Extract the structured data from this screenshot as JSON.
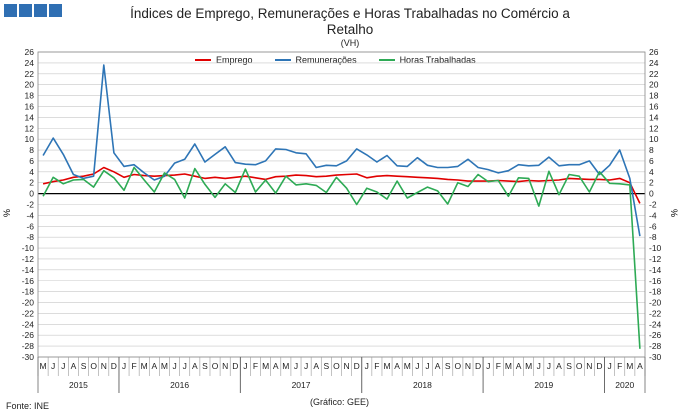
{
  "header": {
    "title_line1": "Índices de Emprego, Remunerações e Horas Trabalhadas no Comércio a",
    "title_line2": "Retalho",
    "subtitle": "(VH)"
  },
  "footer": {
    "source": "Fonte: INE",
    "credit": "(Gráfico: GEE)"
  },
  "colors": {
    "emprego": "#e00000",
    "remuneracoes": "#2e75b6",
    "horas": "#2eaa55",
    "logo": "#2f6fb3"
  },
  "chart_data": {
    "type": "line",
    "title": "Índices de Emprego, Remunerações e Horas Trabalhadas no Comércio a Retalho",
    "subtitle": "(VH)",
    "ylabel_left": "%",
    "ylabel_right": "%",
    "ylim": [
      -30,
      26
    ],
    "yticks": [
      -30,
      -28,
      -26,
      -24,
      -22,
      -20,
      -18,
      -16,
      -14,
      -12,
      -10,
      -8,
      -6,
      -4,
      -2,
      0,
      2,
      4,
      6,
      8,
      10,
      12,
      14,
      16,
      18,
      20,
      22,
      24,
      26
    ],
    "grid": true,
    "legend_position": "top",
    "month_labels": [
      "M",
      "J",
      "J",
      "A",
      "S",
      "O",
      "N",
      "D",
      "J",
      "F",
      "M",
      "A",
      "M",
      "J",
      "J",
      "A",
      "S",
      "O",
      "N",
      "D",
      "J",
      "F",
      "M",
      "A",
      "M",
      "J",
      "J",
      "A",
      "S",
      "O",
      "N",
      "D",
      "J",
      "F",
      "M",
      "A",
      "M",
      "J",
      "J",
      "A",
      "S",
      "O",
      "N",
      "D",
      "J",
      "F",
      "M",
      "A",
      "M",
      "J",
      "J",
      "A",
      "S",
      "O",
      "N",
      "D",
      "J",
      "F",
      "M",
      "A"
    ],
    "year_labels": [
      {
        "label": "2015",
        "start": 0,
        "end": 8
      },
      {
        "label": "2016",
        "start": 8,
        "end": 20
      },
      {
        "label": "2017",
        "start": 20,
        "end": 32
      },
      {
        "label": "2018",
        "start": 32,
        "end": 44
      },
      {
        "label": "2019",
        "start": 44,
        "end": 56
      },
      {
        "label": "2020",
        "start": 56,
        "end": 60
      }
    ],
    "series": [
      {
        "name": "Emprego",
        "color": "#e00000",
        "values": [
          1.8,
          2.2,
          2.5,
          3.0,
          3.2,
          3.6,
          4.8,
          4.0,
          3.0,
          3.5,
          3.3,
          3.2,
          3.3,
          3.4,
          3.6,
          3.2,
          2.8,
          3.0,
          2.8,
          3.0,
          3.2,
          2.9,
          2.6,
          3.1,
          3.2,
          3.4,
          3.3,
          3.1,
          3.2,
          3.4,
          3.5,
          3.6,
          2.9,
          3.2,
          3.3,
          3.2,
          3.1,
          3.0,
          2.9,
          2.8,
          2.6,
          2.5,
          2.3,
          2.3,
          2.3,
          2.4,
          2.3,
          2.2,
          2.4,
          2.3,
          2.4,
          2.5,
          2.8,
          2.7,
          2.6,
          2.6,
          2.5,
          2.8,
          2.0,
          -1.8
        ]
      },
      {
        "name": "Remunerações",
        "color": "#2e75b6",
        "values": [
          7.0,
          10.2,
          7.2,
          3.5,
          2.8,
          3.2,
          23.6,
          7.5,
          5.0,
          5.3,
          3.8,
          2.5,
          3.2,
          5.6,
          6.3,
          9.1,
          5.8,
          7.2,
          8.6,
          5.7,
          5.4,
          5.3,
          6.0,
          8.2,
          8.1,
          7.5,
          7.3,
          4.8,
          5.2,
          5.1,
          6.0,
          8.2,
          7.1,
          5.8,
          7.0,
          5.1,
          5.0,
          6.6,
          5.2,
          4.8,
          4.8,
          5.0,
          6.3,
          4.8,
          4.4,
          3.8,
          4.2,
          5.3,
          5.1,
          5.2,
          6.7,
          5.1,
          5.3,
          5.3,
          6.0,
          3.5,
          5.2,
          8.0,
          2.8,
          -7.8
        ]
      },
      {
        "name": "Horas Trabalhadas",
        "color": "#2eaa55",
        "values": [
          -0.5,
          3.0,
          1.8,
          2.5,
          2.6,
          1.2,
          4.2,
          2.9,
          0.6,
          4.8,
          2.5,
          0.3,
          3.8,
          2.6,
          -0.8,
          4.6,
          1.7,
          -0.7,
          1.8,
          0.2,
          4.5,
          0.3,
          2.5,
          0.1,
          3.2,
          1.6,
          1.8,
          1.5,
          0.2,
          3.0,
          1.0,
          -2.0,
          1.0,
          0.3,
          -1.0,
          2.3,
          -0.8,
          0.2,
          1.2,
          0.5,
          -1.9,
          2.0,
          1.3,
          3.5,
          2.2,
          2.4,
          -0.5,
          2.9,
          2.8,
          -2.3,
          4.1,
          -0.2,
          3.5,
          3.2,
          0.3,
          4.0,
          1.9,
          1.8,
          1.6,
          -28.5
        ]
      }
    ]
  }
}
